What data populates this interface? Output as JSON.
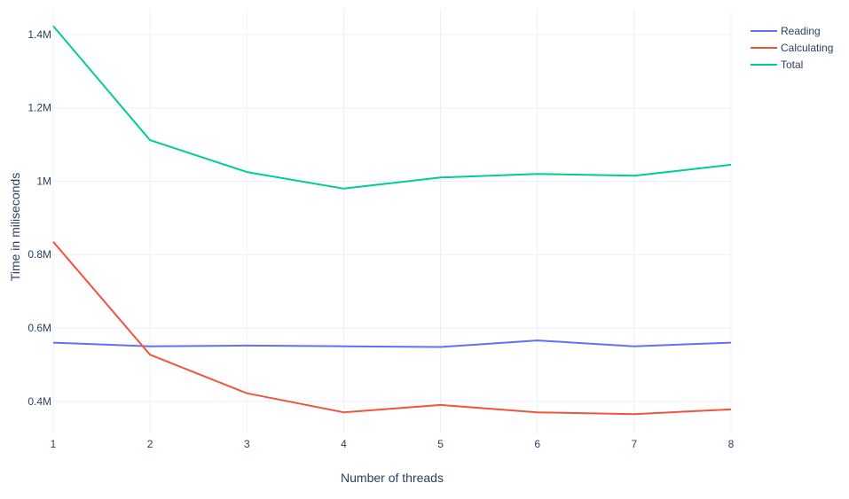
{
  "chart_data": {
    "type": "line",
    "x": [
      1,
      2,
      3,
      4,
      5,
      6,
      7,
      8
    ],
    "xlabel": "Number of threads",
    "ylabel": "Time in miliseconds",
    "xlim": [
      1,
      8
    ],
    "ylim": [
      310000,
      1470000
    ],
    "x_ticks": [
      1,
      2,
      3,
      4,
      5,
      6,
      7,
      8
    ],
    "y_ticks": [
      400000,
      600000,
      800000,
      1000000,
      1200000,
      1400000
    ],
    "y_tick_labels": [
      "0.4M",
      "0.6M",
      "0.8M",
      "1M",
      "1.2M",
      "1.4M"
    ],
    "grid": true,
    "legend_position": "top-right",
    "series": [
      {
        "name": "Reading",
        "color": "#636efa",
        "values": [
          560000,
          550000,
          552000,
          550000,
          548000,
          566000,
          550000,
          560000
        ]
      },
      {
        "name": "Calculating",
        "color": "#ef553b",
        "values": [
          835000,
          527000,
          422000,
          370000,
          390000,
          370000,
          365000,
          378000
        ]
      },
      {
        "name": "Total",
        "color": "#00cc96",
        "values": [
          1423000,
          1112000,
          1025000,
          980000,
          1010000,
          1020000,
          1015000,
          1045000
        ]
      }
    ]
  }
}
